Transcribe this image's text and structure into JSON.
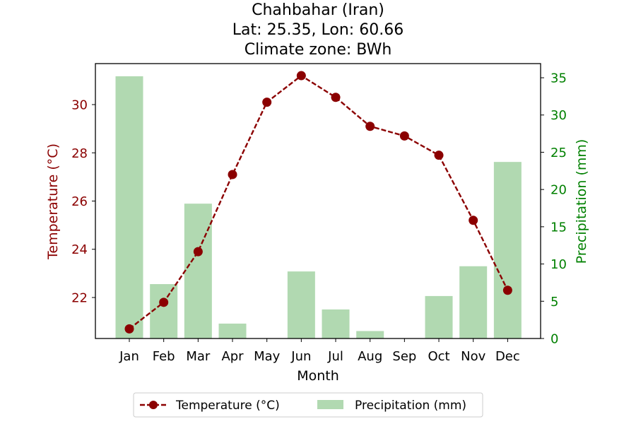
{
  "chart_data": {
    "type": "bar",
    "title": [
      "Chahbahar (Iran)",
      "Lat: 25.35, Lon: 60.66",
      "Climate zone: BWh"
    ],
    "xlabel": "Month",
    "ylabel": "Temperature (°C)",
    "y2label": "Precipitation (mm)",
    "categories": [
      "Jan",
      "Feb",
      "Mar",
      "Apr",
      "May",
      "Jun",
      "Jul",
      "Aug",
      "Sep",
      "Oct",
      "Nov",
      "Dec"
    ],
    "series": [
      {
        "name": "Temperature (°C)",
        "type": "line",
        "axis": "left",
        "color": "#8b0000",
        "line_style": "dashed",
        "marker": "circle",
        "values": [
          20.7,
          21.8,
          23.9,
          27.1,
          30.1,
          31.2,
          30.3,
          29.1,
          28.7,
          27.9,
          25.2,
          22.3
        ]
      },
      {
        "name": "Precipitation (mm)",
        "type": "bar",
        "axis": "right",
        "color": "#b1d9b1",
        "values": [
          35.2,
          7.3,
          18.1,
          2.0,
          0.0,
          9.0,
          3.9,
          1.0,
          0.0,
          5.7,
          9.7,
          23.7
        ]
      }
    ],
    "ylim": [
      20.3,
      31.7
    ],
    "y2lim": [
      0,
      36.9
    ],
    "yticks": [
      22,
      24,
      26,
      28,
      30
    ],
    "y2ticks": [
      0,
      5,
      10,
      15,
      20,
      25,
      30,
      35
    ],
    "left_axis_color": "#8b0000",
    "right_axis_color": "#008000",
    "grid": false,
    "legend_position": "bottom-center"
  }
}
